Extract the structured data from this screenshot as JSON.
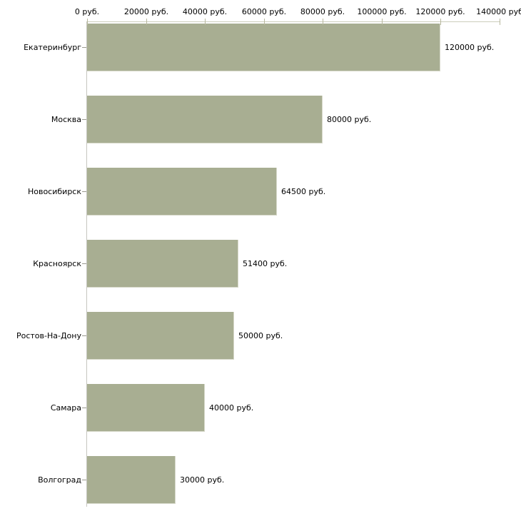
{
  "chart_data": {
    "type": "bar",
    "orientation": "horizontal",
    "title": "",
    "xlabel": "",
    "ylabel": "",
    "grid": false,
    "legend": false,
    "categories": [
      "Екатеринбург",
      "Москва",
      "Новосибирск",
      "Красноярск",
      "Ростов-На-Дону",
      "Самара",
      "Волгоград"
    ],
    "values": [
      120000,
      80000,
      64500,
      51400,
      50000,
      40000,
      30000
    ],
    "value_labels": [
      "120000 руб.",
      "80000 руб.",
      "64500 руб.",
      "51400 руб.",
      "50000 руб.",
      "40000 руб.",
      "30000 руб."
    ],
    "xlim": [
      0,
      140000
    ],
    "x_ticks": [
      0,
      20000,
      40000,
      60000,
      80000,
      100000,
      120000,
      140000
    ],
    "x_tick_labels": [
      "0 руб.",
      "20000 руб.",
      "40000 руб.",
      "60000 руб.",
      "80000 руб.",
      "100000 руб.",
      "120000 руб.",
      "140000 руб"
    ],
    "colors": {
      "bar_fill": "#a8ae92",
      "bar_edge": "#d5d7c8",
      "x_axis_line": "#cccdbb",
      "x_tick_mark": "#b8b99f",
      "y_axis_line": "#c6c6c0",
      "y_tick_mark": "#99998f",
      "text": "#000000"
    }
  }
}
